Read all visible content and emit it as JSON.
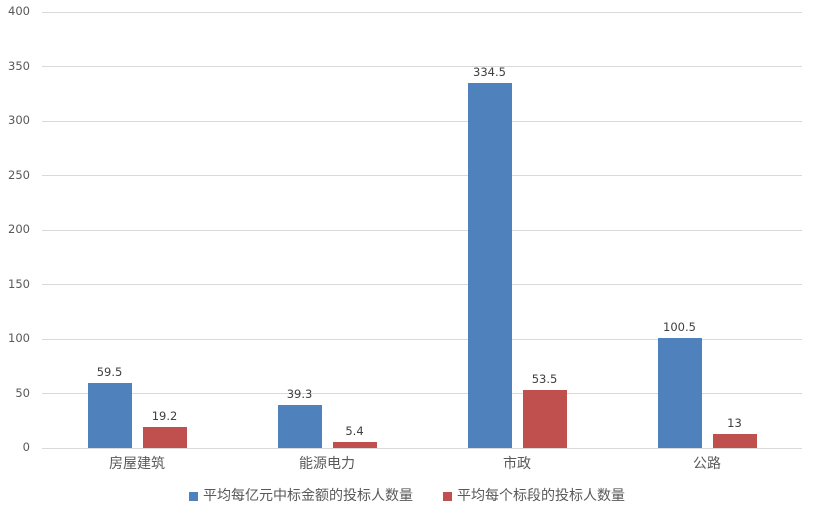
{
  "chart_data": {
    "type": "bar",
    "orientation": "vertical",
    "grouped": true,
    "categories": [
      "房屋建筑",
      "能源电力",
      "市政",
      "公路"
    ],
    "series": [
      {
        "name": "平均每亿元中标金额的投标人数量",
        "color": "#4F81BD",
        "values": [
          59.5,
          39.3,
          334.5,
          100.5
        ],
        "value_labels": [
          "59.5",
          "39.3",
          "334.5",
          "100.5"
        ]
      },
      {
        "name": "平均每个标段的投标人数量",
        "color": "#C0504D",
        "values": [
          19.2,
          5.4,
          53.5,
          13
        ],
        "value_labels": [
          "19.2",
          "5.4",
          "53.5",
          "13"
        ]
      }
    ],
    "ylim": [
      0,
      400
    ],
    "ytick_step": 50,
    "ytick_labels": [
      "0",
      "50",
      "100",
      "150",
      "200",
      "250",
      "300",
      "350",
      "400"
    ],
    "xlabel": "",
    "ylabel": "",
    "title": "",
    "grid": "horizontal",
    "legend_position": "bottom",
    "data_labels_shown": true
  },
  "colors": {
    "background": "#ffffff",
    "gridline": "#d9d9d9",
    "axis_text": "#595959",
    "data_label_text": "#404040"
  }
}
